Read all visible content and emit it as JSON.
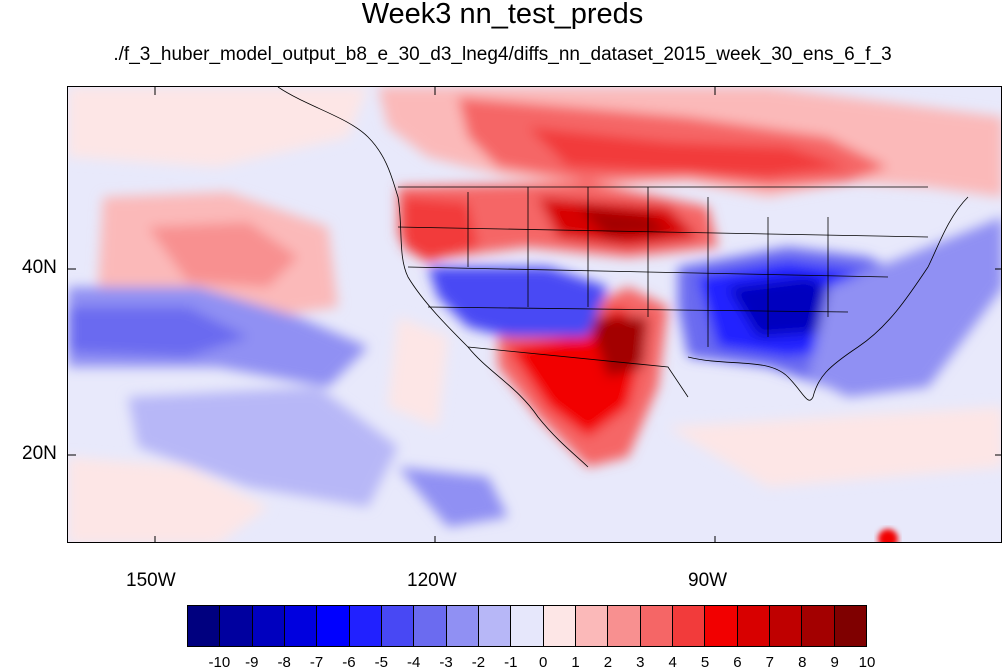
{
  "title": "Week3 nn_test_preds",
  "subtitle": "./f_3_huber_model_output_b8_e_30_d3_lneg4/diffs_nn_dataset_2015_week_30_ens_6_f_3",
  "axes": {
    "x_ticks": [
      "150W",
      "120W",
      "90W"
    ],
    "y_ticks": [
      "40N",
      "20N"
    ]
  },
  "colorbar": {
    "labels": [
      "-10",
      "-9",
      "-8",
      "-7",
      "-6",
      "-5",
      "-4",
      "-3",
      "-2",
      "-1",
      "0",
      "1",
      "2",
      "3",
      "4",
      "5",
      "6",
      "7",
      "8",
      "9",
      "10"
    ],
    "colors": [
      "#00007f",
      "#00009f",
      "#0000bf",
      "#0000df",
      "#0000ff",
      "#2121ff",
      "#4848f4",
      "#6b6bf0",
      "#9090f3",
      "#b7b7f7",
      "#e6e7fb",
      "#fde6e6",
      "#fbb9b9",
      "#f89090",
      "#f56666",
      "#f23b3b",
      "#f20000",
      "#d80000",
      "#bf0000",
      "#a30000",
      "#7f0000"
    ]
  },
  "colors": {
    "neutral": "#e8e9fb",
    "coastline": "#000000"
  }
}
